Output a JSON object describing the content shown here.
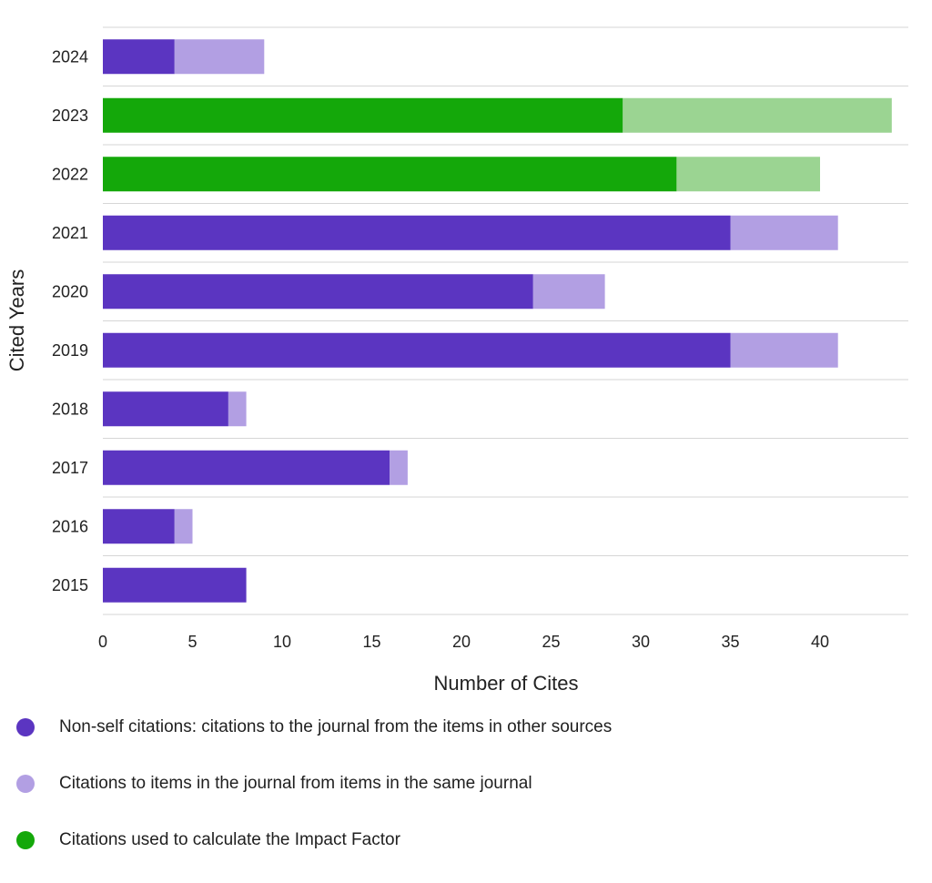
{
  "chart_data": {
    "type": "bar",
    "orientation": "horizontal",
    "stacked": true,
    "ylabel": "Cited Years",
    "xlabel": "Number of Cites",
    "categories": [
      "2024",
      "2023",
      "2022",
      "2021",
      "2020",
      "2019",
      "2018",
      "2017",
      "2016",
      "2015"
    ],
    "x_ticks": [
      "0",
      "5",
      "10",
      "15",
      "20",
      "25",
      "30",
      "35",
      "40"
    ],
    "xlim": [
      0,
      45
    ],
    "grid": "horizontal lines between categories",
    "impact_factor_years": [
      "2023",
      "2022"
    ],
    "series": [
      {
        "name": "Non-self citations: citations to the journal from the items in other sources",
        "values": [
          4,
          29,
          32,
          35,
          24,
          35,
          7,
          16,
          4,
          8
        ]
      },
      {
        "name": "Citations to items in the journal from items in the same journal",
        "values": [
          5,
          15,
          8,
          6,
          4,
          6,
          1,
          1,
          1,
          0
        ]
      }
    ],
    "legend_placement": "bottom"
  },
  "legend": [
    {
      "label": "Non-self citations: citations to the journal from the items in other sources",
      "color": "#5b35c1"
    },
    {
      "label": "Citations to items in the journal from items in the same journal",
      "color": "#b29fe3"
    },
    {
      "label": "Citations used to calculate the Impact Factor",
      "color": "#14a80a"
    }
  ],
  "colors": {
    "nonself": "#5b35c1",
    "self": "#b29fe3",
    "impact_nonself": "#14a80a",
    "impact_self": "#9bd492",
    "gridline": "#d6d6d6"
  }
}
